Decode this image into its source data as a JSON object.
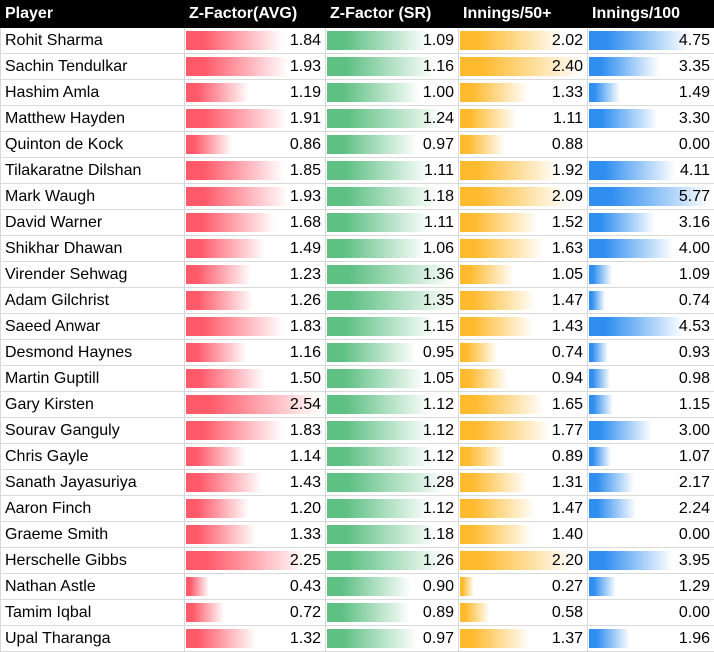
{
  "colors": {
    "header_bg": "#000000",
    "avg": "#ff5a6a",
    "sr": "#5fc084",
    "i50": "#ffba2e",
    "i100": "#2f8ef0"
  },
  "chart_data": {
    "type": "table",
    "columns": [
      "Player",
      "Z-Factor(AVG)",
      "Z-Factor (SR)",
      "Innings/50+",
      "Innings/100"
    ],
    "scale_max": {
      "avg": 2.54,
      "sr": 1.36,
      "i50": 2.4,
      "i100": 5.77
    },
    "rows": [
      {
        "player": "Rohit Sharma",
        "avg": "1.84",
        "sr": "1.09",
        "i50": "2.02",
        "i100": "4.75"
      },
      {
        "player": "Sachin Tendulkar",
        "avg": "1.93",
        "sr": "1.16",
        "i50": "2.40",
        "i100": "3.35"
      },
      {
        "player": "Hashim Amla",
        "avg": "1.19",
        "sr": "1.00",
        "i50": "1.33",
        "i100": "1.49"
      },
      {
        "player": "Matthew Hayden",
        "avg": "1.91",
        "sr": "1.24",
        "i50": "1.11",
        "i100": "3.30"
      },
      {
        "player": "Quinton de Kock",
        "avg": "0.86",
        "sr": "0.97",
        "i50": "0.88",
        "i100": "0.00"
      },
      {
        "player": "Tilakaratne Dilshan",
        "avg": "1.85",
        "sr": "1.11",
        "i50": "1.92",
        "i100": "4.11"
      },
      {
        "player": "Mark Waugh",
        "avg": "1.93",
        "sr": "1.18",
        "i50": "2.09",
        "i100": "5.77"
      },
      {
        "player": "David Warner",
        "avg": "1.68",
        "sr": "1.11",
        "i50": "1.52",
        "i100": "3.16"
      },
      {
        "player": "Shikhar Dhawan",
        "avg": "1.49",
        "sr": "1.06",
        "i50": "1.63",
        "i100": "4.00"
      },
      {
        "player": "Virender Sehwag",
        "avg": "1.23",
        "sr": "1.36",
        "i50": "1.05",
        "i100": "1.09"
      },
      {
        "player": "Adam Gilchrist",
        "avg": "1.26",
        "sr": "1.35",
        "i50": "1.47",
        "i100": "0.74"
      },
      {
        "player": "Saeed Anwar",
        "avg": "1.83",
        "sr": "1.15",
        "i50": "1.43",
        "i100": "4.53"
      },
      {
        "player": "Desmond Haynes",
        "avg": "1.16",
        "sr": "0.95",
        "i50": "0.74",
        "i100": "0.93"
      },
      {
        "player": "Martin Guptill",
        "avg": "1.50",
        "sr": "1.05",
        "i50": "0.94",
        "i100": "0.98"
      },
      {
        "player": "Gary Kirsten",
        "avg": "2.54",
        "sr": "1.12",
        "i50": "1.65",
        "i100": "1.15"
      },
      {
        "player": "Sourav Ganguly",
        "avg": "1.83",
        "sr": "1.12",
        "i50": "1.77",
        "i100": "3.00"
      },
      {
        "player": "Chris Gayle",
        "avg": "1.14",
        "sr": "1.12",
        "i50": "0.89",
        "i100": "1.07"
      },
      {
        "player": "Sanath Jayasuriya",
        "avg": "1.43",
        "sr": "1.28",
        "i50": "1.31",
        "i100": "2.17"
      },
      {
        "player": "Aaron Finch",
        "avg": "1.20",
        "sr": "1.12",
        "i50": "1.47",
        "i100": "2.24"
      },
      {
        "player": "Graeme Smith",
        "avg": "1.33",
        "sr": "1.18",
        "i50": "1.40",
        "i100": "0.00"
      },
      {
        "player": "Herschelle Gibbs",
        "avg": "2.25",
        "sr": "1.26",
        "i50": "2.20",
        "i100": "3.95"
      },
      {
        "player": "Nathan Astle",
        "avg": "0.43",
        "sr": "0.90",
        "i50": "0.27",
        "i100": "1.29"
      },
      {
        "player": "Tamim Iqbal",
        "avg": "0.72",
        "sr": "0.89",
        "i50": "0.58",
        "i100": "0.00"
      },
      {
        "player": "Upal Tharanga",
        "avg": "1.32",
        "sr": "0.97",
        "i50": "1.37",
        "i100": "1.96"
      }
    ]
  }
}
